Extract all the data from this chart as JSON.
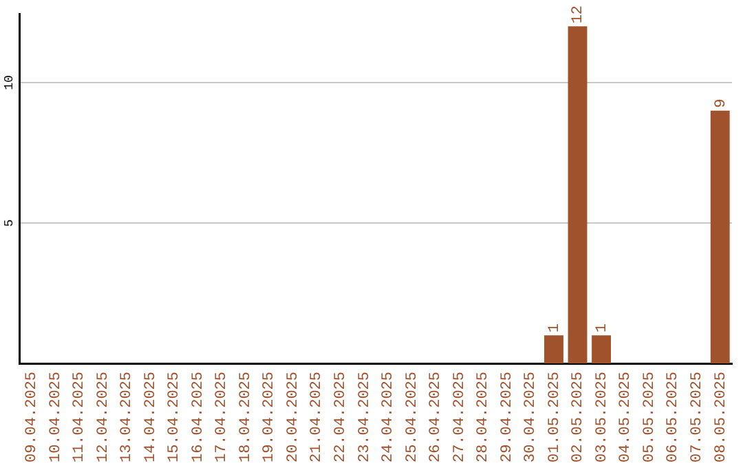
{
  "chart_data": {
    "type": "bar",
    "categories": [
      "09.04.2025",
      "10.04.2025",
      "11.04.2025",
      "12.04.2025",
      "13.04.2025",
      "14.04.2025",
      "15.04.2025",
      "16.04.2025",
      "17.04.2025",
      "18.04.2025",
      "19.04.2025",
      "20.04.2025",
      "21.04.2025",
      "22.04.2025",
      "23.04.2025",
      "24.04.2025",
      "25.04.2025",
      "26.04.2025",
      "27.04.2025",
      "28.04.2025",
      "29.04.2025",
      "30.04.2025",
      "01.05.2025",
      "02.05.2025",
      "03.05.2025",
      "04.05.2025",
      "05.05.2025",
      "06.05.2025",
      "07.05.2025",
      "08.05.2025"
    ],
    "values": [
      0,
      0,
      0,
      0,
      0,
      0,
      0,
      0,
      0,
      0,
      0,
      0,
      0,
      0,
      0,
      0,
      0,
      0,
      0,
      0,
      0,
      0,
      1,
      12,
      1,
      0,
      0,
      0,
      0,
      9
    ],
    "value_labels": [
      null,
      null,
      null,
      null,
      null,
      null,
      null,
      null,
      null,
      null,
      null,
      null,
      null,
      null,
      null,
      null,
      null,
      null,
      null,
      null,
      null,
      null,
      "1",
      "12",
      "1",
      null,
      null,
      null,
      null,
      "9"
    ],
    "color": "#a0522d",
    "ylim": [
      0,
      12.45
    ],
    "yticks": [
      5,
      10
    ],
    "grid": "y",
    "legend": false
  }
}
